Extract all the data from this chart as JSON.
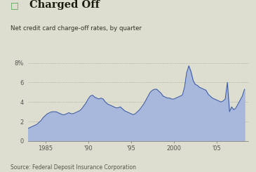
{
  "title": "Charged Off",
  "subtitle": "Net credit card charge-off rates, by quarter",
  "source": "Source: Federal Deposit Insurance Corporation",
  "legend_color": "#4ca64c",
  "fill_color": "#a8b8dd",
  "line_color": "#3858a0",
  "background_color": "#ddddd0",
  "plot_bg_color": "#ddddd0",
  "ytick_labels": [
    "0",
    "2",
    "4",
    "6",
    "8%"
  ],
  "yticks": [
    0,
    2,
    4,
    6,
    8
  ],
  "ylim": [
    0,
    8.8
  ],
  "xlim": [
    1983.0,
    2008.7
  ],
  "xtick_labels": [
    "1985",
    "'90",
    "'95",
    "2000",
    "'05"
  ],
  "xtick_positions": [
    1985,
    1990,
    1995,
    2000,
    2005
  ],
  "data": {
    "years": [
      1983.0,
      1983.25,
      1983.5,
      1983.75,
      1984.0,
      1984.25,
      1984.5,
      1984.75,
      1985.0,
      1985.25,
      1985.5,
      1985.75,
      1986.0,
      1986.25,
      1986.5,
      1986.75,
      1987.0,
      1987.25,
      1987.5,
      1987.75,
      1988.0,
      1988.25,
      1988.5,
      1988.75,
      1989.0,
      1989.25,
      1989.5,
      1989.75,
      1990.0,
      1990.25,
      1990.5,
      1990.75,
      1991.0,
      1991.25,
      1991.5,
      1991.75,
      1992.0,
      1992.25,
      1992.5,
      1992.75,
      1993.0,
      1993.25,
      1993.5,
      1993.75,
      1994.0,
      1994.25,
      1994.5,
      1994.75,
      1995.0,
      1995.25,
      1995.5,
      1995.75,
      1996.0,
      1996.25,
      1996.5,
      1996.75,
      1997.0,
      1997.25,
      1997.5,
      1997.75,
      1998.0,
      1998.25,
      1998.5,
      1998.75,
      1999.0,
      1999.25,
      1999.5,
      1999.75,
      2000.0,
      2000.25,
      2000.5,
      2000.75,
      2001.0,
      2001.25,
      2001.5,
      2001.75,
      2002.0,
      2002.25,
      2002.5,
      2002.75,
      2003.0,
      2003.25,
      2003.5,
      2003.75,
      2004.0,
      2004.25,
      2004.5,
      2004.75,
      2005.0,
      2005.25,
      2005.5,
      2005.75,
      2006.0,
      2006.25,
      2006.5,
      2006.75,
      2007.0,
      2007.25,
      2007.5,
      2007.75,
      2008.0,
      2008.25
    ],
    "values": [
      1.3,
      1.4,
      1.5,
      1.6,
      1.7,
      1.9,
      2.1,
      2.4,
      2.6,
      2.8,
      2.9,
      3.0,
      3.0,
      3.0,
      2.9,
      2.8,
      2.7,
      2.7,
      2.8,
      2.9,
      2.8,
      2.8,
      2.9,
      3.0,
      3.1,
      3.3,
      3.6,
      3.9,
      4.3,
      4.6,
      4.7,
      4.5,
      4.4,
      4.3,
      4.4,
      4.3,
      4.0,
      3.8,
      3.7,
      3.6,
      3.5,
      3.4,
      3.4,
      3.5,
      3.3,
      3.1,
      3.0,
      2.9,
      2.8,
      2.7,
      2.8,
      3.0,
      3.2,
      3.5,
      3.8,
      4.2,
      4.6,
      5.0,
      5.2,
      5.3,
      5.3,
      5.1,
      4.9,
      4.6,
      4.5,
      4.4,
      4.4,
      4.3,
      4.3,
      4.4,
      4.5,
      4.6,
      4.7,
      5.5,
      7.0,
      7.7,
      7.1,
      6.2,
      5.8,
      5.7,
      5.5,
      5.4,
      5.3,
      5.2,
      4.8,
      4.6,
      4.4,
      4.3,
      4.2,
      4.1,
      4.0,
      4.1,
      4.3,
      6.0,
      3.0,
      3.5,
      3.2,
      3.4,
      3.8,
      4.2,
      4.6,
      5.3
    ]
  }
}
